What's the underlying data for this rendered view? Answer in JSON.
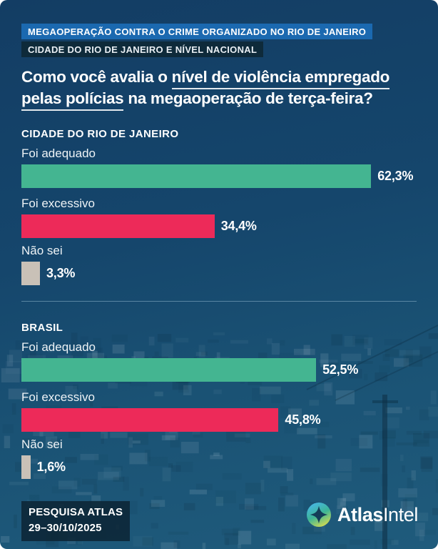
{
  "page": {
    "background_top_color": "#133d64",
    "background_bottom_color": "#1f5b7c"
  },
  "header": {
    "badge_primary": {
      "label": "MEGAOPERAÇÃO CONTRA O CRIME ORGANIZADO NO RIO DE JANEIRO",
      "bg": "#1b69b0"
    },
    "badge_secondary": {
      "label": "CIDADE DO RIO DE JANEIRO E NÍVEL NACIONAL",
      "bg": "#0e2a3a"
    },
    "title_lines": [
      [
        {
          "text": "Como você avalia o ",
          "underline": false
        },
        {
          "text": "nível de violência empregado",
          "underline": true
        }
      ],
      [
        {
          "text": "pelas polícias",
          "underline": true
        },
        {
          "text": " na megaoperação de terça-feira?",
          "underline": false
        }
      ]
    ]
  },
  "chart_data": {
    "type": "bar",
    "orientation": "horizontal",
    "value_unit": "%",
    "axis_max": 70.4,
    "colors": {
      "adequado": "#44b591",
      "excessivo": "#ed2a59",
      "nao_sei": "#c9c1b7"
    },
    "sections": [
      {
        "heading": "CIDADE DO RIO DE JANEIRO",
        "bars": [
          {
            "label": "Foi adequado",
            "value": 62.3,
            "display": "62,3%",
            "color_key": "adequado"
          },
          {
            "label": "Foi excessivo",
            "value": 34.4,
            "display": "34,4%",
            "color_key": "excessivo"
          },
          {
            "label": "Não sei",
            "value": 3.3,
            "display": "3,3%",
            "color_key": "nao_sei"
          }
        ]
      },
      {
        "heading": "BRASIL",
        "bars": [
          {
            "label": "Foi adequado",
            "value": 52.5,
            "display": "52,5%",
            "color_key": "adequado"
          },
          {
            "label": "Foi excessivo",
            "value": 45.8,
            "display": "45,8%",
            "color_key": "excessivo"
          },
          {
            "label": "Não sei",
            "value": 1.6,
            "display": "1,6%",
            "color_key": "nao_sei"
          }
        ]
      }
    ]
  },
  "footer": {
    "source_badge": {
      "line1": "PESQUISA ATLAS",
      "line2": "29–30/10/2025",
      "bg": "rgba(13,38,54,0.88)"
    },
    "logo": {
      "icon": "atlasintel-compass-icon",
      "icon_gradient": [
        "#47b7e6",
        "#3db596",
        "#d9dc4e"
      ],
      "name_bold": "Atlas",
      "name_light": "Intel"
    }
  }
}
